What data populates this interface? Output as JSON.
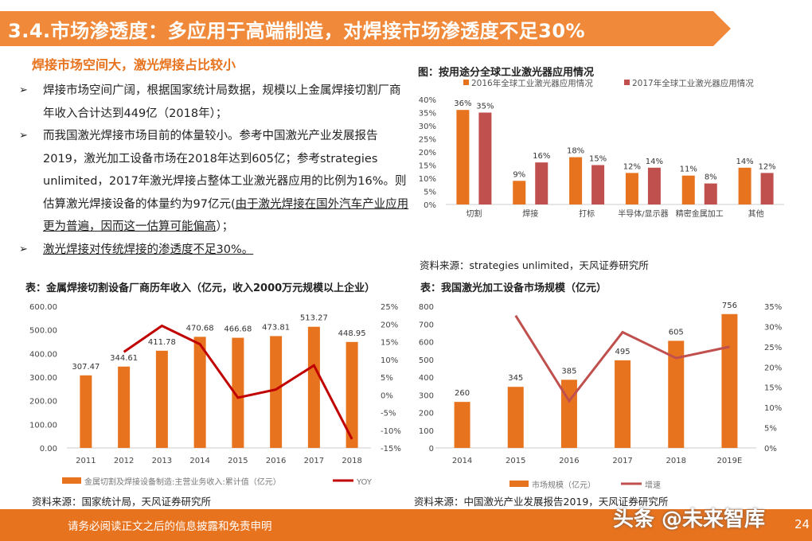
{
  "header": {
    "title": "3.4.市场渗透度：多应用于高端制造，对焊接市场渗透度不足30%",
    "banner_color": "#F08A3A"
  },
  "subheading": "焊接市场空间大，激光焊接占比较小",
  "bullets": [
    {
      "icon": "arrow-bullet-icon",
      "parts": [
        {
          "text": "焊接市场空间广阔，根据国家统计局数据，规模以上金属焊接切割厂商年收入合计达到449亿（2018年）；",
          "underline": false
        }
      ]
    },
    {
      "icon": "arrow-bullet-icon",
      "parts": [
        {
          "text": "而我国激光焊接市场目前的体量较小。参考中国激光产业发展报告2019，激光加工设备市场在2018年达到605亿；参考strategies unlimited，2017年激光焊接占整体工业激光器应用的比例为16%。则估算激光焊接设备的体量约为97亿元(",
          "underline": false
        },
        {
          "text": "由于激光焊接在国外汽车产业应用更为普遍，因而这一估算可能偏高",
          "underline": true
        },
        {
          "text": "）；",
          "underline": false
        }
      ]
    },
    {
      "icon": "arrow-bullet-icon",
      "parts": [
        {
          "text": "激光焊接对传统焊接的渗透度不足30%。",
          "underline": true
        }
      ]
    }
  ],
  "chart_data": [
    {
      "type": "bar",
      "title": "图：按用途分全球工业激光器应用情况",
      "categories": [
        "切割",
        "焊接",
        "打标",
        "半导体/显示器",
        "精密金属加工",
        "其他"
      ],
      "series": [
        {
          "name": "2016年全球工业激光器应用情况",
          "values": [
            36,
            9,
            18,
            12,
            11,
            14
          ],
          "labels": [
            "36%",
            "9%",
            "18%",
            "12%",
            "11%",
            "14%"
          ],
          "color": "#E8731E"
        },
        {
          "name": "2017年全球工业激光器应用情况",
          "values": [
            35,
            16,
            15,
            14,
            8,
            12
          ],
          "labels": [
            "35%",
            "16%",
            "15%",
            "14%",
            "8%",
            "12%"
          ],
          "color": "#C0504D"
        }
      ],
      "ylim": [
        0,
        40
      ],
      "yticks": [
        "0%",
        "5%",
        "10%",
        "15%",
        "20%",
        "25%",
        "30%",
        "35%",
        "40%"
      ],
      "legend": "top",
      "source": "资料来源：strategies unlimited，天风证券研究所"
    },
    {
      "type": "bar+line",
      "title": "表：金属焊接切割设备厂商历年收入（亿元，收入2000万元规模以上企业）",
      "categories": [
        "2011",
        "2012",
        "2013",
        "2014",
        "2015",
        "2016",
        "2017",
        "2018"
      ],
      "bar_series": {
        "name": "金属切割及焊接设备制造:主营业务收入:累计值（亿元）",
        "values": [
          307.47,
          344.61,
          411.78,
          470.68,
          466.68,
          473.81,
          513.27,
          448.95
        ],
        "labels": [
          "307.47",
          "344.61",
          "411.78",
          "470.68",
          "466.68",
          "473.81",
          "513.27",
          "448.95"
        ],
        "color": "#E8731E"
      },
      "line_series": {
        "name": "YOY",
        "values": [
          null,
          12.1,
          19.5,
          14.3,
          -0.8,
          1.5,
          8.3,
          -12.5
        ],
        "color": "#C00000"
      },
      "ylim": [
        0,
        600
      ],
      "yticks": [
        "0.00",
        "100.00",
        "200.00",
        "300.00",
        "400.00",
        "500.00",
        "600.00"
      ],
      "y2lim": [
        -15,
        25
      ],
      "y2ticks": [
        "-15%",
        "-10%",
        "-5%",
        "0%",
        "5%",
        "10%",
        "15%",
        "20%",
        "25%"
      ],
      "legend": "bottom",
      "source": "资料来源：国家统计局，天风证券研究所"
    },
    {
      "type": "bar+line",
      "title": "表：我国激光加工设备市场规模（亿元）",
      "categories": [
        "2014",
        "2015",
        "2016",
        "2017",
        "2018",
        "2019E"
      ],
      "bar_series": {
        "name": "市场规模（亿元）",
        "values": [
          260,
          345,
          385,
          495,
          605,
          756
        ],
        "labels": [
          "260",
          "345",
          "385",
          "495",
          "605",
          "756"
        ],
        "color": "#E8731E"
      },
      "line_series": {
        "name": "增速",
        "values": [
          null,
          32.7,
          11.6,
          28.6,
          22.2,
          25.0
        ],
        "color": "#C0504D"
      },
      "ylim": [
        0,
        800
      ],
      "yticks": [
        "0",
        "100",
        "200",
        "300",
        "400",
        "500",
        "600",
        "700",
        "800"
      ],
      "y2lim": [
        0,
        35
      ],
      "y2ticks": [
        "0%",
        "5%",
        "10%",
        "15%",
        "20%",
        "25%",
        "30%",
        "35%"
      ],
      "legend": "bottom",
      "source": "资料来源：中国激光产业发展报告2019，天风证券研究所"
    }
  ],
  "footer": {
    "disclaimer": "请务必阅读正文之后的信息披露和免责申明",
    "watermark": "头条 @未来智库",
    "page": "24",
    "color": "#E8731E"
  }
}
